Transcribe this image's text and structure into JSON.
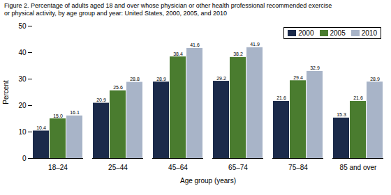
{
  "chart_data": {
    "type": "bar",
    "title": "Figure 2. Percentage of adults aged 18 and over whose physician or other health professional recommended exercise",
    "subtitle": "or physical activity, by age group and year: United States, 2000, 2005, and 2010",
    "categories": [
      "18–24",
      "25–44",
      "45–64",
      "65–74",
      "75–84",
      "85 and over"
    ],
    "series": [
      {
        "name": "2000",
        "color": "#1b2a4a",
        "values": [
          10.4,
          20.9,
          28.9,
          29.2,
          21.6,
          15.3
        ],
        "value_labels": [
          "10.4",
          "20.9",
          "28.9",
          "29.2",
          "21.6",
          "15.3"
        ]
      },
      {
        "name": "2005",
        "color": "#4a7c2f",
        "values": [
          15.0,
          25.6,
          38.4,
          38.2,
          29.4,
          21.6
        ],
        "value_labels": [
          "15.0",
          "25.6",
          "38.4",
          "38.2",
          "29.4",
          "21.6"
        ]
      },
      {
        "name": "2010",
        "color": "#a8b4c8",
        "values": [
          16.1,
          28.8,
          41.6,
          41.9,
          32.9,
          28.9
        ],
        "value_labels": [
          "16.1",
          "28.8",
          "41.6",
          "41.9",
          "32.9",
          "28.9"
        ]
      }
    ],
    "xlabel": "Age group (years)",
    "ylabel": "Percent",
    "ylim": [
      0,
      50
    ],
    "yticks": [
      0,
      10,
      20,
      30,
      40,
      50
    ],
    "grid": false,
    "legend": "upper right",
    "data_labels": true
  }
}
